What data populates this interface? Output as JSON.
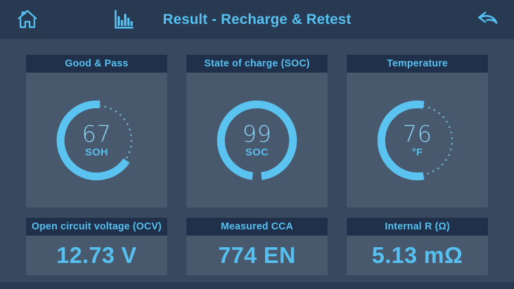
{
  "accent": "#56C0F0",
  "header": {
    "title": "Result - Recharge & Retest",
    "home_icon": "home-icon",
    "chart_icon": "bar-chart-icon",
    "back_icon": "back-arrow-icon"
  },
  "gauges": [
    {
      "title": "Good & Pass",
      "value": "67",
      "unit": "SOH",
      "arc": {
        "start": -85,
        "sweep": -241,
        "dotted": true
      }
    },
    {
      "title": "State of charge (SOC)",
      "value": "99",
      "unit": "SOC",
      "arc": {
        "start": 97,
        "sweep": 346,
        "dotted": false
      }
    },
    {
      "title": "Temperature",
      "value": "76",
      "unit": "°F",
      "arc": {
        "start": -80,
        "sweep": -200,
        "dotted": true
      }
    }
  ],
  "metrics": [
    {
      "title": "Open circuit voltage (OCV)",
      "value": "12.73 V"
    },
    {
      "title": "Measured CCA",
      "value": "774 EN"
    },
    {
      "title": "Internal R (Ω)",
      "value": "5.13 mΩ"
    }
  ]
}
